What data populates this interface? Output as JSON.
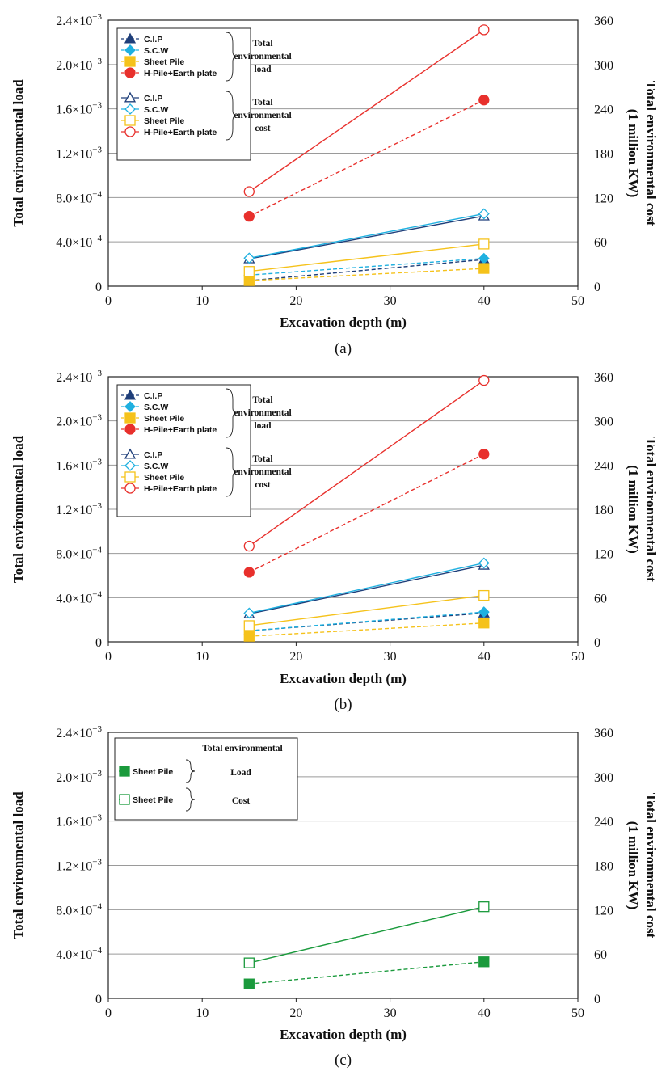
{
  "colors": {
    "cip": "#1f3f7a",
    "scw": "#1fb0e0",
    "sheet": "#f5c21b",
    "hpile": "#e8302c",
    "sheet_green": "#1a9a3c"
  },
  "chart_data": [
    {
      "type": "line",
      "panel_label": "(a)",
      "xlabel": "Excavation depth (m)",
      "ylabel_left": "Total environmental load",
      "ylabel_right_line1": "Total environmental cost",
      "ylabel_right_line2": "(1 million KW)",
      "xlim": [
        0,
        50
      ],
      "ylim_left": [
        0,
        0.0024
      ],
      "ylim_right": [
        0,
        360
      ],
      "x_ticks": [
        "0",
        "10",
        "20",
        "30",
        "40",
        "50"
      ],
      "y_left_ticks": [
        "0",
        "4.0×10",
        "8.0×10",
        "1.2×10",
        "1.6×10",
        "2.0×10",
        "2.4×10"
      ],
      "y_left_exps": [
        "",
        "−4",
        "−4",
        "−3",
        "−3",
        "−3",
        "−3"
      ],
      "y_right_ticks": [
        "0",
        "60",
        "120",
        "180",
        "240",
        "300",
        "360"
      ],
      "legend_groups": [
        {
          "label_line1": "Total",
          "label_line2": "environmental",
          "label_line3": "load"
        },
        {
          "label_line1": "Total",
          "label_line2": "environmental",
          "label_line3": "cost"
        }
      ],
      "series": [
        {
          "name": "C.I.P",
          "group": "load",
          "axis": "left",
          "style": "dashed",
          "marker": "triangle-filled",
          "color": "#1f3f7a",
          "x": [
            15,
            40
          ],
          "y": [
            5e-05,
            0.00024
          ]
        },
        {
          "name": "S.C.W",
          "group": "load",
          "axis": "left",
          "style": "dashed",
          "marker": "diamond-filled",
          "color": "#1fb0e0",
          "x": [
            15,
            40
          ],
          "y": [
            0.0001,
            0.00025
          ]
        },
        {
          "name": "Sheet Pile",
          "group": "load",
          "axis": "left",
          "style": "dashed",
          "marker": "square-filled",
          "color": "#f5c21b",
          "x": [
            15,
            40
          ],
          "y": [
            5e-05,
            0.00016
          ]
        },
        {
          "name": "H-Pile+Earth plate",
          "group": "load",
          "axis": "left",
          "style": "dashed",
          "marker": "circle-filled",
          "color": "#e8302c",
          "x": [
            15,
            40
          ],
          "y": [
            0.00063,
            0.00168
          ]
        },
        {
          "name": "C.I.P",
          "group": "cost",
          "axis": "right",
          "style": "solid",
          "marker": "triangle-open",
          "color": "#1f3f7a",
          "x": [
            15,
            40
          ],
          "y": [
            37,
            95
          ]
        },
        {
          "name": "S.C.W",
          "group": "cost",
          "axis": "right",
          "style": "solid",
          "marker": "diamond-open",
          "color": "#1fb0e0",
          "x": [
            15,
            40
          ],
          "y": [
            38,
            98
          ]
        },
        {
          "name": "Sheet Pile",
          "group": "cost",
          "axis": "right",
          "style": "solid",
          "marker": "square-open",
          "color": "#f5c21b",
          "x": [
            15,
            40
          ],
          "y": [
            20,
            57
          ]
        },
        {
          "name": "H-Pile+Earth plate",
          "group": "cost",
          "axis": "right",
          "style": "solid",
          "marker": "circle-open",
          "color": "#e8302c",
          "x": [
            15,
            40
          ],
          "y": [
            128,
            347
          ]
        }
      ]
    },
    {
      "type": "line",
      "panel_label": "(b)",
      "xlabel": "Excavation depth (m)",
      "ylabel_left": "Total environmental load",
      "ylabel_right_line1": "Total environmental cost",
      "ylabel_right_line2": "(1 million KW)",
      "xlim": [
        0,
        50
      ],
      "ylim_left": [
        0,
        0.0024
      ],
      "ylim_right": [
        0,
        360
      ],
      "x_ticks": [
        "0",
        "10",
        "20",
        "30",
        "40",
        "50"
      ],
      "y_left_ticks": [
        "0",
        "4.0×10",
        "8.0×10",
        "1.2×10",
        "1.6×10",
        "2.0×10",
        "2.4×10"
      ],
      "y_left_exps": [
        "",
        "−4",
        "−4",
        "−3",
        "−3",
        "−3",
        "−3"
      ],
      "y_right_ticks": [
        "0",
        "60",
        "120",
        "180",
        "240",
        "300",
        "360"
      ],
      "legend_groups": [
        {
          "label_line1": "Total",
          "label_line2": "environmental",
          "label_line3": "load"
        },
        {
          "label_line1": "Total",
          "label_line2": "environmental",
          "label_line3": "cost"
        }
      ],
      "series": [
        {
          "name": "C.I.P",
          "group": "load",
          "axis": "left",
          "style": "dashed",
          "marker": "triangle-filled",
          "color": "#1f3f7a",
          "x": [
            15,
            40
          ],
          "y": [
            0.0001,
            0.00026
          ]
        },
        {
          "name": "S.C.W",
          "group": "load",
          "axis": "left",
          "style": "dashed",
          "marker": "diamond-filled",
          "color": "#1fb0e0",
          "x": [
            15,
            40
          ],
          "y": [
            0.0001,
            0.00027
          ]
        },
        {
          "name": "Sheet Pile",
          "group": "load",
          "axis": "left",
          "style": "dashed",
          "marker": "square-filled",
          "color": "#f5c21b",
          "x": [
            15,
            40
          ],
          "y": [
            5e-05,
            0.00017
          ]
        },
        {
          "name": "H-Pile+Earth plate",
          "group": "load",
          "axis": "left",
          "style": "dashed",
          "marker": "circle-filled",
          "color": "#e8302c",
          "x": [
            15,
            40
          ],
          "y": [
            0.00063,
            0.0017
          ]
        },
        {
          "name": "C.I.P",
          "group": "cost",
          "axis": "right",
          "style": "solid",
          "marker": "triangle-open",
          "color": "#1f3f7a",
          "x": [
            15,
            40
          ],
          "y": [
            38,
            104
          ]
        },
        {
          "name": "S.C.W",
          "group": "cost",
          "axis": "right",
          "style": "solid",
          "marker": "diamond-open",
          "color": "#1fb0e0",
          "x": [
            15,
            40
          ],
          "y": [
            39,
            107
          ]
        },
        {
          "name": "Sheet Pile",
          "group": "cost",
          "axis": "right",
          "style": "solid",
          "marker": "square-open",
          "color": "#f5c21b",
          "x": [
            15,
            40
          ],
          "y": [
            22,
            63
          ]
        },
        {
          "name": "H-Pile+Earth plate",
          "group": "cost",
          "axis": "right",
          "style": "solid",
          "marker": "circle-open",
          "color": "#e8302c",
          "x": [
            15,
            40
          ],
          "y": [
            130,
            355
          ]
        }
      ]
    },
    {
      "type": "line",
      "panel_label": "(c)",
      "xlabel": "Excavation depth (m)",
      "ylabel_left": "Total environmental load",
      "ylabel_right_line1": "Total environmental cost",
      "ylabel_right_line2": "(1 million KW)",
      "xlim": [
        0,
        50
      ],
      "ylim_left": [
        0,
        0.0024
      ],
      "ylim_right": [
        0,
        360
      ],
      "x_ticks": [
        "0",
        "10",
        "20",
        "30",
        "40",
        "50"
      ],
      "y_left_ticks": [
        "0",
        "4.0×10",
        "8.0×10",
        "1.2×10",
        "1.6×10",
        "2.0×10",
        "2.4×10"
      ],
      "y_left_exps": [
        "",
        "−4",
        "−4",
        "−3",
        "−3",
        "−3",
        "−3"
      ],
      "y_right_ticks": [
        "0",
        "60",
        "120",
        "180",
        "240",
        "300",
        "360"
      ],
      "legend_header": "Total environmental",
      "legend_groups": [
        {
          "label_line1": "Load"
        },
        {
          "label_line1": "Cost"
        }
      ],
      "series": [
        {
          "name": "Sheet Pile",
          "group": "load",
          "axis": "left",
          "style": "dashed",
          "marker": "square-filled",
          "color": "#1a9a3c",
          "x": [
            15,
            40
          ],
          "y": [
            0.00013,
            0.00033
          ]
        },
        {
          "name": "Sheet Pile",
          "group": "cost",
          "axis": "right",
          "style": "solid",
          "marker": "square-open",
          "color": "#1a9a3c",
          "x": [
            15,
            40
          ],
          "y": [
            48,
            124
          ]
        }
      ]
    }
  ]
}
